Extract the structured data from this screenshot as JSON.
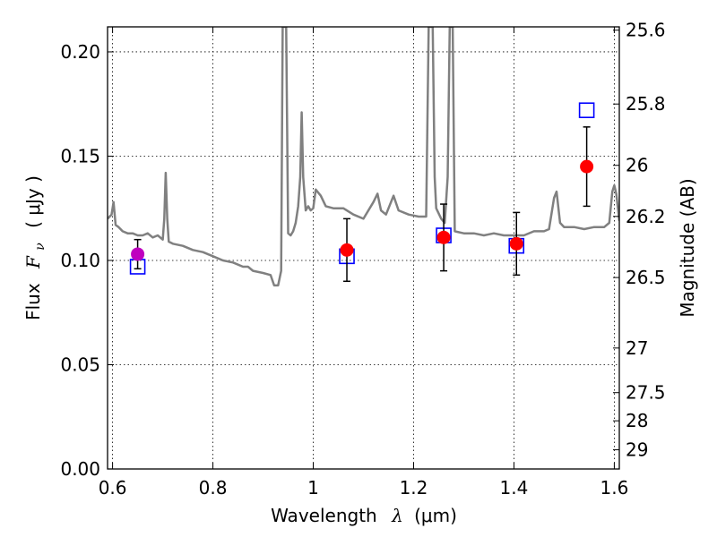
{
  "chart_data": {
    "type": "scatter",
    "xlabel": "Wavelength",
    "xlabel_symbol": "λ",
    "xlabel_unit": "(μm)",
    "ylabel": "Flux",
    "ylabel_symbol": "F",
    "ylabel_subscript": "ν",
    "ylabel_unit": "( μJy )",
    "y2label": "Magnitude (AB)",
    "xlim": [
      0.59,
      1.61
    ],
    "ylim": [
      0.0,
      0.212
    ],
    "grid": true,
    "x_ticks": [
      0.6,
      0.8,
      1.0,
      1.2,
      1.4,
      1.6
    ],
    "x_tick_labels": [
      "0.6",
      "0.8",
      "1",
      "1.2",
      "1.4",
      "1.6"
    ],
    "y_ticks": [
      0.0,
      0.05,
      0.1,
      0.15,
      0.2
    ],
    "y_tick_labels": [
      "0.00",
      "0.05",
      "0.10",
      "0.15",
      "0.20"
    ],
    "y2_ticks": [
      {
        "label": "25.6",
        "flux": 0.2104
      },
      {
        "label": "25.8",
        "flux": 0.175
      },
      {
        "label": "26",
        "flux": 0.1456
      },
      {
        "label": "26.2",
        "flux": 0.1211
      },
      {
        "label": "26.5",
        "flux": 0.0918
      },
      {
        "label": "27",
        "flux": 0.058
      },
      {
        "label": "27.5",
        "flux": 0.0366
      },
      {
        "label": "28",
        "flux": 0.0231
      },
      {
        "label": "29",
        "flux": 0.0092
      }
    ],
    "observed": [
      {
        "x": 0.65,
        "y": 0.103,
        "err": 0.007,
        "color": "#bf00bf"
      },
      {
        "x": 1.067,
        "y": 0.105,
        "err": 0.015,
        "color": "#ff0000"
      },
      {
        "x": 1.26,
        "y": 0.111,
        "err": 0.016,
        "color": "#ff0000"
      },
      {
        "x": 1.405,
        "y": 0.108,
        "err": 0.015,
        "color": "#ff0000"
      },
      {
        "x": 1.545,
        "y": 0.145,
        "err": 0.019,
        "color": "#ff0000"
      }
    ],
    "model": [
      {
        "x": 0.65,
        "y": 0.097
      },
      {
        "x": 1.067,
        "y": 0.102
      },
      {
        "x": 1.26,
        "y": 0.112
      },
      {
        "x": 1.405,
        "y": 0.107
      },
      {
        "x": 1.545,
        "y": 0.172
      }
    ],
    "spectrum": [
      [
        0.59,
        0.12
      ],
      [
        0.598,
        0.122
      ],
      [
        0.602,
        0.128
      ],
      [
        0.606,
        0.117
      ],
      [
        0.612,
        0.116
      ],
      [
        0.62,
        0.114
      ],
      [
        0.63,
        0.113
      ],
      [
        0.64,
        0.113
      ],
      [
        0.65,
        0.112
      ],
      [
        0.66,
        0.112
      ],
      [
        0.67,
        0.113
      ],
      [
        0.68,
        0.111
      ],
      [
        0.69,
        0.112
      ],
      [
        0.7,
        0.11
      ],
      [
        0.703,
        0.12
      ],
      [
        0.706,
        0.142
      ],
      [
        0.709,
        0.12
      ],
      [
        0.712,
        0.109
      ],
      [
        0.72,
        0.108
      ],
      [
        0.74,
        0.107
      ],
      [
        0.76,
        0.105
      ],
      [
        0.78,
        0.104
      ],
      [
        0.8,
        0.102
      ],
      [
        0.82,
        0.1
      ],
      [
        0.84,
        0.099
      ],
      [
        0.86,
        0.097
      ],
      [
        0.87,
        0.097
      ],
      [
        0.88,
        0.095
      ],
      [
        0.9,
        0.094
      ],
      [
        0.915,
        0.093
      ],
      [
        0.922,
        0.088
      ],
      [
        0.93,
        0.088
      ],
      [
        0.936,
        0.095
      ],
      [
        0.939,
        0.212
      ],
      [
        0.946,
        0.212
      ],
      [
        0.95,
        0.113
      ],
      [
        0.955,
        0.112
      ],
      [
        0.96,
        0.114
      ],
      [
        0.965,
        0.118
      ],
      [
        0.97,
        0.126
      ],
      [
        0.974,
        0.14
      ],
      [
        0.977,
        0.171
      ],
      [
        0.98,
        0.14
      ],
      [
        0.985,
        0.124
      ],
      [
        0.99,
        0.126
      ],
      [
        0.995,
        0.124
      ],
      [
        1.0,
        0.125
      ],
      [
        1.005,
        0.134
      ],
      [
        1.015,
        0.131
      ],
      [
        1.025,
        0.126
      ],
      [
        1.04,
        0.125
      ],
      [
        1.06,
        0.125
      ],
      [
        1.08,
        0.122
      ],
      [
        1.1,
        0.12
      ],
      [
        1.12,
        0.128
      ],
      [
        1.128,
        0.132
      ],
      [
        1.135,
        0.124
      ],
      [
        1.145,
        0.122
      ],
      [
        1.16,
        0.131
      ],
      [
        1.17,
        0.124
      ],
      [
        1.19,
        0.122
      ],
      [
        1.21,
        0.121
      ],
      [
        1.225,
        0.121
      ],
      [
        1.23,
        0.212
      ],
      [
        1.238,
        0.212
      ],
      [
        1.242,
        0.14
      ],
      [
        1.245,
        0.125
      ],
      [
        1.255,
        0.12
      ],
      [
        1.262,
        0.118
      ],
      [
        1.268,
        0.14
      ],
      [
        1.272,
        0.212
      ],
      [
        1.278,
        0.212
      ],
      [
        1.282,
        0.114
      ],
      [
        1.3,
        0.113
      ],
      [
        1.32,
        0.113
      ],
      [
        1.34,
        0.112
      ],
      [
        1.36,
        0.113
      ],
      [
        1.38,
        0.112
      ],
      [
        1.4,
        0.112
      ],
      [
        1.42,
        0.112
      ],
      [
        1.44,
        0.114
      ],
      [
        1.46,
        0.114
      ],
      [
        1.47,
        0.115
      ],
      [
        1.48,
        0.13
      ],
      [
        1.485,
        0.133
      ],
      [
        1.492,
        0.118
      ],
      [
        1.5,
        0.116
      ],
      [
        1.52,
        0.116
      ],
      [
        1.54,
        0.115
      ],
      [
        1.56,
        0.116
      ],
      [
        1.58,
        0.116
      ],
      [
        1.59,
        0.118
      ],
      [
        1.596,
        0.133
      ],
      [
        1.6,
        0.136
      ],
      [
        1.604,
        0.132
      ],
      [
        1.61,
        0.119
      ]
    ],
    "colors": {
      "spectrum": "#808080",
      "model_marker": "#0000ff",
      "errorbar": "#000000"
    }
  }
}
